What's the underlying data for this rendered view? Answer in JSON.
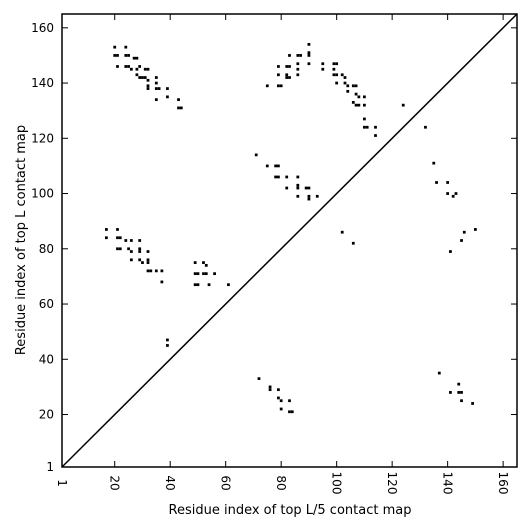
{
  "chart_data": {
    "type": "heatmap",
    "xlabel": "Residue index of top L/5 contact map",
    "ylabel": "Residue index of top L contact map",
    "xlim": [
      1,
      165
    ],
    "ylim": [
      1,
      165
    ],
    "xticks": [
      {
        "value": 1,
        "label": "1"
      },
      {
        "value": 20,
        "label": "20"
      },
      {
        "value": 40,
        "label": "40"
      },
      {
        "value": 60,
        "label": "60"
      },
      {
        "value": 80,
        "label": "80"
      },
      {
        "value": 100,
        "label": "100"
      },
      {
        "value": 120,
        "label": "120"
      },
      {
        "value": 140,
        "label": "140"
      },
      {
        "value": 160,
        "label": "160"
      }
    ],
    "yticks": [
      {
        "value": 1,
        "label": "1"
      },
      {
        "value": 20,
        "label": "20"
      },
      {
        "value": 40,
        "label": "40"
      },
      {
        "value": 60,
        "label": "60"
      },
      {
        "value": 80,
        "label": "80"
      },
      {
        "value": 100,
        "label": "100"
      },
      {
        "value": 120,
        "label": "120"
      },
      {
        "value": 140,
        "label": "140"
      },
      {
        "value": 160,
        "label": "160"
      }
    ],
    "diagonal": true,
    "grid": false,
    "mark_color": "#000000",
    "contacts": [
      [
        20,
        153
      ],
      [
        24,
        153
      ],
      [
        20,
        150
      ],
      [
        21,
        150
      ],
      [
        24,
        150
      ],
      [
        25,
        150
      ],
      [
        27,
        149
      ],
      [
        28,
        149
      ],
      [
        21,
        146
      ],
      [
        24,
        146
      ],
      [
        25,
        146
      ],
      [
        26,
        145
      ],
      [
        28,
        145
      ],
      [
        29,
        146
      ],
      [
        31,
        145
      ],
      [
        32,
        145
      ],
      [
        28,
        143
      ],
      [
        29,
        142
      ],
      [
        30,
        142
      ],
      [
        31,
        142
      ],
      [
        32,
        141
      ],
      [
        32,
        139
      ],
      [
        32,
        138
      ],
      [
        35,
        142
      ],
      [
        35,
        140
      ],
      [
        35,
        138
      ],
      [
        36,
        138
      ],
      [
        35,
        134
      ],
      [
        39,
        138
      ],
      [
        39,
        135
      ],
      [
        43,
        134
      ],
      [
        43,
        131
      ],
      [
        44,
        131
      ],
      [
        83,
        150
      ],
      [
        86,
        150
      ],
      [
        87,
        150
      ],
      [
        90,
        154
      ],
      [
        90,
        151
      ],
      [
        90,
        150
      ],
      [
        79,
        146
      ],
      [
        82,
        146
      ],
      [
        83,
        146
      ],
      [
        86,
        147
      ],
      [
        86,
        145
      ],
      [
        79,
        143
      ],
      [
        82,
        143
      ],
      [
        83,
        142
      ],
      [
        86,
        143
      ],
      [
        82,
        142
      ],
      [
        75,
        139
      ],
      [
        79,
        139
      ],
      [
        80,
        139
      ],
      [
        90,
        147
      ],
      [
        95,
        147
      ],
      [
        95,
        145
      ],
      [
        99,
        147
      ],
      [
        100,
        147
      ],
      [
        99,
        145
      ],
      [
        99,
        143
      ],
      [
        100,
        143
      ],
      [
        102,
        143
      ],
      [
        103,
        142
      ],
      [
        100,
        140
      ],
      [
        103,
        140
      ],
      [
        104,
        139
      ],
      [
        106,
        139
      ],
      [
        107,
        139
      ],
      [
        104,
        137
      ],
      [
        107,
        136
      ],
      [
        108,
        135
      ],
      [
        110,
        135
      ],
      [
        106,
        133
      ],
      [
        107,
        132
      ],
      [
        108,
        132
      ],
      [
        110,
        132
      ],
      [
        110,
        127
      ],
      [
        110,
        124
      ],
      [
        111,
        124
      ],
      [
        114,
        124
      ],
      [
        114,
        121
      ],
      [
        124,
        132
      ],
      [
        132,
        124
      ],
      [
        71,
        114
      ],
      [
        75,
        110
      ],
      [
        78,
        110
      ],
      [
        79,
        110
      ],
      [
        78,
        106
      ],
      [
        79,
        106
      ],
      [
        82,
        106
      ],
      [
        86,
        106
      ],
      [
        82,
        102
      ],
      [
        86,
        103
      ],
      [
        86,
        102
      ],
      [
        89,
        102
      ],
      [
        90,
        102
      ],
      [
        86,
        99
      ],
      [
        90,
        99
      ],
      [
        90,
        98
      ],
      [
        93,
        99
      ],
      [
        135,
        111
      ],
      [
        136,
        104
      ],
      [
        140,
        104
      ],
      [
        140,
        100
      ],
      [
        142,
        99
      ],
      [
        143,
        100
      ],
      [
        146,
        86
      ],
      [
        145,
        83
      ],
      [
        141,
        79
      ],
      [
        150,
        87
      ],
      [
        102,
        86
      ],
      [
        106,
        82
      ],
      [
        17,
        87
      ],
      [
        21,
        87
      ],
      [
        17,
        84
      ],
      [
        21,
        84
      ],
      [
        22,
        84
      ],
      [
        24,
        83
      ],
      [
        26,
        83
      ],
      [
        29,
        83
      ],
      [
        21,
        80
      ],
      [
        22,
        80
      ],
      [
        25,
        80
      ],
      [
        26,
        79
      ],
      [
        29,
        80
      ],
      [
        29,
        79
      ],
      [
        32,
        79
      ],
      [
        26,
        76
      ],
      [
        29,
        76
      ],
      [
        30,
        75
      ],
      [
        32,
        76
      ],
      [
        32,
        75
      ],
      [
        32,
        72
      ],
      [
        33,
        72
      ],
      [
        35,
        72
      ],
      [
        37,
        72
      ],
      [
        37,
        68
      ],
      [
        49,
        75
      ],
      [
        52,
        75
      ],
      [
        53,
        74
      ],
      [
        49,
        71
      ],
      [
        50,
        71
      ],
      [
        52,
        71
      ],
      [
        53,
        71
      ],
      [
        56,
        71
      ],
      [
        49,
        67
      ],
      [
        50,
        67
      ],
      [
        54,
        67
      ],
      [
        61,
        67
      ],
      [
        39,
        47
      ],
      [
        39,
        45
      ],
      [
        72,
        33
      ],
      [
        76,
        30
      ],
      [
        76,
        29
      ],
      [
        79,
        29
      ],
      [
        79,
        26
      ],
      [
        80,
        25
      ],
      [
        80,
        22
      ],
      [
        83,
        25
      ],
      [
        83,
        21
      ],
      [
        84,
        21
      ],
      [
        137,
        35
      ],
      [
        144,
        31
      ],
      [
        141,
        28
      ],
      [
        144,
        28
      ],
      [
        145,
        28
      ],
      [
        145,
        25
      ],
      [
        149,
        24
      ]
    ]
  }
}
